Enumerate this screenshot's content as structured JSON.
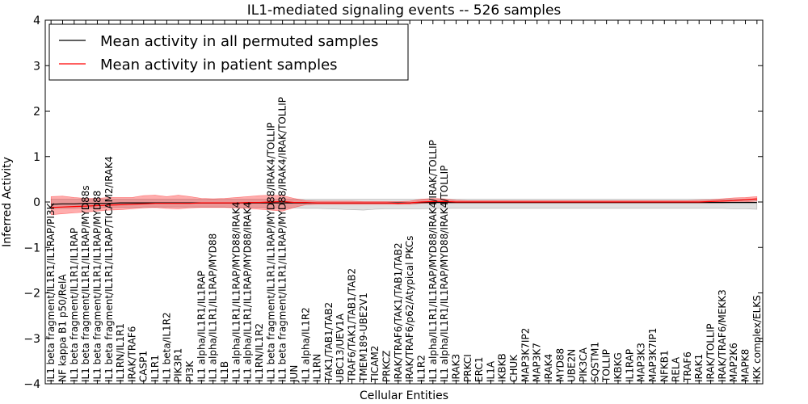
{
  "chart_data": {
    "type": "line",
    "title": "IL1-mediated signaling events -- 526 samples",
    "xlabel": "Cellular Entities",
    "ylabel": "Inferred Activity",
    "ylim": [
      -4,
      4
    ],
    "yticks": [
      "−4",
      "−3",
      "−2",
      "−1",
      "0",
      "1",
      "2",
      "3",
      "4"
    ],
    "legend": {
      "placement": "top-left",
      "entries": [
        {
          "label": "Mean activity in all permuted samples",
          "color": "#000000"
        },
        {
          "label": "Mean activity in patient samples",
          "color": "#ff0000"
        }
      ]
    },
    "categories": [
      "IL1 beta fragment/IL1R1/IL1RAP/PI3K",
      "NF kappa B1 p50/RelA",
      "IL1 beta fragment/IL1R1/IL1RAP",
      "IL1 beta fragment/IL1R1/IL1RAP/MYD88s",
      "IL1 beta fragment/IL1R1/IL1RAP/MYD88",
      "IL1 beta fragment/IL1R1/IL1RAP/TICAM2/IRAK4",
      "IL1RN/IL1R1",
      "IRAK/TRAF6",
      "CASP1",
      "IL1R1",
      "IL1 beta/IL1R2",
      "PIK3R1",
      "PI3K",
      "IL1 alpha/IL1R1/IL1RAP",
      "IL1 alpha/IL1R1/IL1RAP/MYD88",
      "IL1B",
      "IL1 alpha/IL1R1/IL1RAP/MYD88/IRAK4",
      "IL1 alpha/IL1R1/IL1RAP/MYD88/IRAK4",
      "IL1RN/IL1R2",
      "IL1 beta fragment/IL1R1/IL1RAP/MYD88/IRAK4/TOLLIP",
      "IL1 beta fragment/IL1R1/IL1RAP/MYD88/IRAK4/IRAK/TOLLIP",
      "JUN",
      "IL1 alpha/IL1R2",
      "IL1RN",
      "TAK1/TAB1/TAB2",
      "UBC13/UEV1A",
      "TRAF6/TAK1/TAB1/TAB2",
      "TMEM189-UBE2V1",
      "TICAM2",
      "PRKCZ",
      "IRAK/TRAF6/TAK1/TAB1/TAB2",
      "IRAK/TRAF6/p62/Atypical PKCs",
      "IL1R2",
      "IL1 alpha/IL1R1/IL1RAP/MYD88/IRAK4/IRAK/TOLLIP",
      "IL1 alpha/IL1R1/IL1RAP/MYD88/IRAK4/TOLLIP",
      "IRAK3",
      "PRKCI",
      "ERC1",
      "IL1A",
      "IKBKB",
      "CHUK",
      "MAP3K7IP2",
      "MAP3K7",
      "IRAK4",
      "MYD88",
      "UBE2N",
      "PIK3CA",
      "SQSTM1",
      "TOLLIP",
      "IKBKG",
      "IL1RAP",
      "MAP3K3",
      "MAP3K7IP1",
      "NFKB1",
      "RELA",
      "TRAF6",
      "IRAK1",
      "IRAK/TOLLIP",
      "IRAK/TRAF6/MEKK3",
      "MAP2K6",
      "MAPK8",
      "IKK complex/ELKS"
    ],
    "series": [
      {
        "name": "Mean activity in all permuted samples",
        "color": "#000000",
        "values": [
          -0.05,
          -0.04,
          -0.04,
          -0.03,
          -0.03,
          -0.03,
          -0.02,
          -0.02,
          -0.02,
          -0.02,
          -0.02,
          -0.02,
          -0.02,
          -0.02,
          -0.02,
          -0.02,
          -0.02,
          -0.02,
          -0.02,
          -0.02,
          -0.02,
          -0.02,
          -0.02,
          -0.02,
          -0.02,
          -0.02,
          -0.02,
          -0.02,
          -0.02,
          -0.02,
          -0.02,
          -0.02,
          -0.01,
          -0.01,
          -0.01,
          -0.01,
          -0.01,
          -0.01,
          -0.01,
          -0.01,
          -0.01,
          -0.01,
          -0.01,
          -0.01,
          -0.01,
          -0.01,
          -0.01,
          -0.01,
          -0.01,
          -0.01,
          -0.01,
          -0.01,
          -0.01,
          -0.01,
          -0.01,
          -0.01,
          -0.01,
          -0.01,
          -0.01,
          -0.01,
          -0.01,
          -0.01
        ],
        "band_low": [
          -0.15,
          -0.14,
          -0.14,
          -0.13,
          -0.13,
          -0.12,
          -0.12,
          -0.12,
          -0.11,
          -0.11,
          -0.11,
          -0.11,
          -0.11,
          -0.11,
          -0.11,
          -0.11,
          -0.12,
          -0.12,
          -0.12,
          -0.13,
          -0.13,
          -0.13,
          -0.14,
          -0.14,
          -0.15,
          -0.16,
          -0.17,
          -0.18,
          -0.16,
          -0.15,
          -0.15,
          -0.15,
          -0.15,
          -0.14,
          -0.14,
          -0.14,
          -0.14,
          -0.14,
          -0.14,
          -0.14,
          -0.14,
          -0.14,
          -0.14,
          -0.14,
          -0.14,
          -0.14,
          -0.14,
          -0.14,
          -0.14,
          -0.14,
          -0.14,
          -0.14,
          -0.14,
          -0.14,
          -0.14,
          -0.14,
          -0.14,
          -0.14,
          -0.14,
          -0.15,
          -0.15,
          -0.16
        ],
        "band_high": [
          0.06,
          0.06,
          0.06,
          0.06,
          0.06,
          0.06,
          0.06,
          0.06,
          0.06,
          0.06,
          0.06,
          0.06,
          0.06,
          0.06,
          0.06,
          0.06,
          0.06,
          0.06,
          0.06,
          0.06,
          0.06,
          0.06,
          0.06,
          0.06,
          0.06,
          0.06,
          0.06,
          0.06,
          0.06,
          0.06,
          0.06,
          0.06,
          0.06,
          0.06,
          0.06,
          0.06,
          0.06,
          0.06,
          0.06,
          0.06,
          0.06,
          0.06,
          0.06,
          0.06,
          0.06,
          0.06,
          0.06,
          0.06,
          0.06,
          0.06,
          0.06,
          0.06,
          0.06,
          0.06,
          0.06,
          0.06,
          0.06,
          0.06,
          0.06,
          0.06,
          0.06,
          0.07
        ]
      },
      {
        "name": "Mean activity in patient samples",
        "color": "#ff0000",
        "values": [
          -0.12,
          -0.11,
          -0.1,
          -0.09,
          -0.08,
          -0.07,
          -0.06,
          -0.05,
          -0.04,
          -0.03,
          -0.03,
          -0.03,
          -0.03,
          -0.02,
          -0.02,
          -0.02,
          -0.02,
          -0.01,
          -0.01,
          0.0,
          0.01,
          -0.01,
          -0.01,
          -0.02,
          -0.02,
          -0.02,
          -0.02,
          -0.02,
          -0.02,
          -0.02,
          -0.03,
          -0.02,
          0.0,
          0.01,
          0.01,
          0.0,
          0.0,
          0.0,
          0.0,
          0.0,
          0.0,
          0.0,
          0.0,
          0.0,
          0.0,
          0.0,
          0.0,
          0.0,
          0.0,
          0.0,
          0.0,
          0.0,
          0.0,
          0.0,
          0.0,
          0.0,
          0.0,
          0.01,
          0.02,
          0.03,
          0.05,
          0.07
        ],
        "band_low": [
          -0.28,
          -0.26,
          -0.24,
          -0.22,
          -0.2,
          -0.18,
          -0.17,
          -0.15,
          -0.13,
          -0.12,
          -0.14,
          -0.15,
          -0.13,
          -0.12,
          -0.12,
          -0.12,
          -0.13,
          -0.14,
          -0.16,
          -0.18,
          -0.2,
          -0.12,
          -0.06,
          -0.05,
          -0.05,
          -0.05,
          -0.05,
          -0.05,
          -0.05,
          -0.05,
          -0.05,
          -0.05,
          -0.03,
          -0.02,
          -0.02,
          -0.02,
          -0.02,
          -0.02,
          -0.02,
          -0.02,
          -0.02,
          -0.02,
          -0.02,
          -0.02,
          -0.02,
          -0.02,
          -0.02,
          -0.02,
          -0.02,
          -0.02,
          -0.02,
          -0.02,
          -0.02,
          -0.02,
          -0.02,
          -0.02,
          -0.02,
          -0.02,
          -0.02,
          -0.01,
          0.0,
          0.02
        ],
        "band_high": [
          0.12,
          0.13,
          0.1,
          0.08,
          0.08,
          0.1,
          0.1,
          0.1,
          0.14,
          0.15,
          0.12,
          0.15,
          0.12,
          0.08,
          0.07,
          0.08,
          0.1,
          0.12,
          0.14,
          0.15,
          0.14,
          0.08,
          0.03,
          0.02,
          0.02,
          0.02,
          0.02,
          0.01,
          0.01,
          0.01,
          0.01,
          0.02,
          0.06,
          0.08,
          0.07,
          0.04,
          0.03,
          0.03,
          0.03,
          0.03,
          0.03,
          0.03,
          0.03,
          0.03,
          0.03,
          0.03,
          0.03,
          0.03,
          0.03,
          0.03,
          0.03,
          0.03,
          0.03,
          0.03,
          0.03,
          0.03,
          0.04,
          0.05,
          0.07,
          0.09,
          0.1,
          0.12
        ]
      }
    ]
  }
}
